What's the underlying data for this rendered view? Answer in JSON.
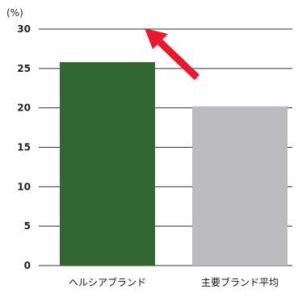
{
  "chart_data": {
    "type": "bar",
    "unit_label": "(%)",
    "categories": [
      "ヘルシアブランド",
      "主要ブランド平均"
    ],
    "values": [
      25.8,
      20.2
    ],
    "bar_colors": [
      "#336633",
      "#bcbcc0"
    ],
    "ylim": [
      0,
      30
    ],
    "yticks": [
      0,
      5,
      10,
      15,
      20,
      25,
      30
    ],
    "grid": true,
    "annotation": {
      "type": "arrow",
      "color": "#e8192c",
      "direction": "up-left"
    }
  }
}
